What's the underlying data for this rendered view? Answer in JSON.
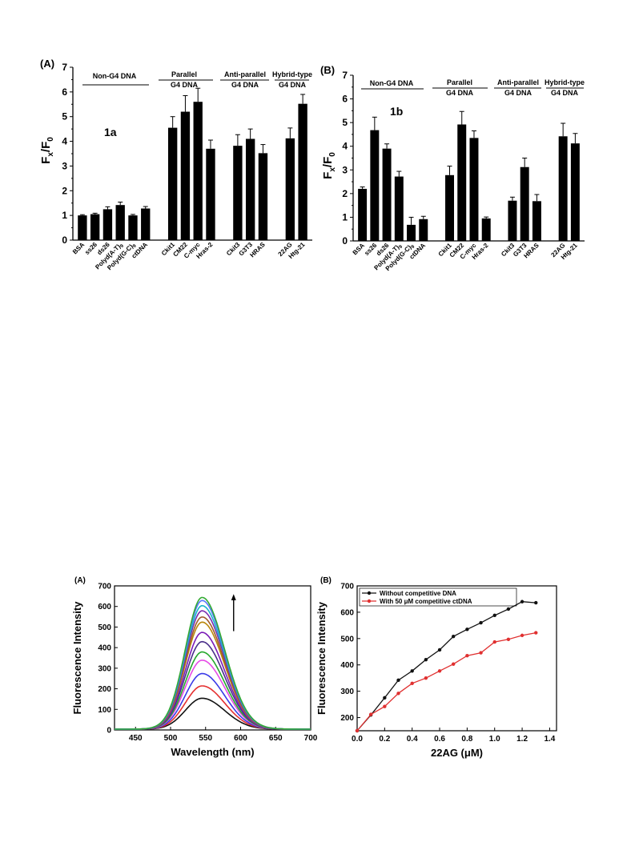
{
  "figures": {
    "top": {
      "A": {
        "panel_label": "(A)",
        "annotation": "1a",
        "ylabel_main": "F",
        "ylabel_sub_x": "x",
        "ylabel_slash": "/F",
        "ylabel_sub_0": "0",
        "groups": [
          {
            "line1": "Non-G4 DNA",
            "line2": ""
          },
          {
            "line1": "Parallel",
            "line2": "G4 DNA"
          },
          {
            "line1": "Anti-parallel",
            "line2": "G4 DNA"
          },
          {
            "line1": "Hybrid-type",
            "line2": "G4 DNA"
          }
        ]
      },
      "B": {
        "panel_label": "(B)",
        "annotation": "1b",
        "ylabel_main": "F",
        "ylabel_sub_x": "x",
        "ylabel_slash": "/F",
        "ylabel_sub_0": "0",
        "groups": [
          {
            "line1": "Non-G4 DNA",
            "line2": ""
          },
          {
            "line1": "Parallel",
            "line2": "G4 DNA"
          },
          {
            "line1": "Anti-parallel",
            "line2": "G4 DNA"
          },
          {
            "line1": "Hybrid-type",
            "line2": "G4 DNA"
          }
        ]
      }
    },
    "bottom": {
      "A": {
        "panel_label": "(A)"
      },
      "B": {
        "panel_label": "(B)"
      }
    }
  },
  "chart_data": [
    {
      "type": "bar",
      "title": "",
      "ylabel": "Fx/F0",
      "ylim": [
        0,
        7
      ],
      "yticks": [
        "0",
        "1",
        "2",
        "3",
        "4",
        "5",
        "6",
        "7"
      ],
      "categories": [
        "BSA",
        "ss26",
        "ds26",
        "Polyd(A-T)9",
        "Polyd(G-C)9",
        "ctDNA",
        "Ckit1",
        "CM22",
        "C-myc",
        "Hras-2",
        "Ckit3",
        "G3T3",
        "HRAS",
        "22AG",
        "Htg-21"
      ],
      "values": [
        1.0,
        1.05,
        1.25,
        1.42,
        1.0,
        1.28,
        4.55,
        5.2,
        5.6,
        3.7,
        3.82,
        4.1,
        3.52,
        4.12,
        5.52
      ],
      "errors": [
        0.03,
        0.04,
        0.1,
        0.12,
        0.04,
        0.08,
        0.45,
        0.65,
        0.55,
        0.35,
        0.45,
        0.4,
        0.35,
        0.42,
        0.38
      ],
      "group_sizes": [
        6,
        4,
        3,
        2
      ]
    },
    {
      "type": "bar",
      "title": "",
      "ylabel": "Fx/F0",
      "ylim": [
        0,
        7
      ],
      "yticks": [
        "0",
        "1",
        "2",
        "3",
        "4",
        "5",
        "6",
        "7"
      ],
      "categories": [
        "BSA",
        "ss26",
        "ds26",
        "Polyd(A-T)9",
        "Polyd(G-C)9",
        "ctDNA",
        "Ckit1",
        "CM22",
        "C-myc",
        "Hras-2",
        "Ckit3",
        "G3T3",
        "HRAS",
        "22AG",
        "Htg-21"
      ],
      "values": [
        2.2,
        4.68,
        3.9,
        2.72,
        0.68,
        0.92,
        2.78,
        4.92,
        4.35,
        0.95,
        1.7,
        3.12,
        1.68,
        4.42,
        4.12
      ],
      "errors": [
        0.08,
        0.55,
        0.2,
        0.22,
        0.32,
        0.12,
        0.38,
        0.55,
        0.3,
        0.06,
        0.15,
        0.38,
        0.28,
        0.55,
        0.42
      ],
      "group_sizes": [
        6,
        4,
        3,
        2
      ]
    },
    {
      "type": "line",
      "title": "",
      "xlabel": "Wavelength (nm)",
      "ylabel": "Fluorescence Intensity",
      "xlim": [
        420,
        700
      ],
      "ylim": [
        0,
        700
      ],
      "xticks": [
        "450",
        "500",
        "550",
        "600",
        "650",
        "700"
      ],
      "yticks": [
        "0",
        "100",
        "200",
        "300",
        "400",
        "500",
        "600",
        "700"
      ],
      "peak_x": 545,
      "peak_values": [
        150,
        210,
        270,
        335,
        375,
        425,
        470,
        520,
        545,
        575,
        600,
        625,
        640
      ],
      "series_colors": [
        "#111111",
        "#e53030",
        "#3a3ae8",
        "#e64ae6",
        "#25a82b",
        "#4a2f8a",
        "#7b1bb8",
        "#b8860b",
        "#a05a2c",
        "#7a2db0",
        "#18b5c9",
        "#5577ff",
        "#33aa33"
      ],
      "arrow": "up"
    },
    {
      "type": "line",
      "title": "",
      "xlabel": "22AG (μM)",
      "ylabel": "Fluorescence Intensity",
      "xlim": [
        0,
        1.45
      ],
      "ylim": [
        150,
        700
      ],
      "xticks": [
        "0.0",
        "0.2",
        "0.4",
        "0.6",
        "0.8",
        "1.0",
        "1.2",
        "1.4"
      ],
      "yticks": [
        "200",
        "300",
        "400",
        "500",
        "600",
        "700"
      ],
      "legend_position": "top-left",
      "series": [
        {
          "name": "Without competitive DNA",
          "color": "#111111",
          "x": [
            0,
            0.1,
            0.2,
            0.3,
            0.4,
            0.5,
            0.6,
            0.7,
            0.8,
            0.9,
            1.0,
            1.1,
            1.2,
            1.3
          ],
          "y": [
            150,
            210,
            275,
            342,
            377,
            420,
            457,
            508,
            535,
            560,
            588,
            612,
            640,
            636
          ]
        },
        {
          "name": "With 50 μM competitive ctDNA",
          "color": "#e03030",
          "x": [
            0,
            0.1,
            0.2,
            0.3,
            0.4,
            0.5,
            0.6,
            0.7,
            0.8,
            0.9,
            1.0,
            1.1,
            1.2,
            1.3
          ],
          "y": [
            150,
            212,
            242,
            292,
            330,
            350,
            377,
            403,
            435,
            446,
            487,
            497,
            512,
            522
          ]
        }
      ]
    }
  ]
}
